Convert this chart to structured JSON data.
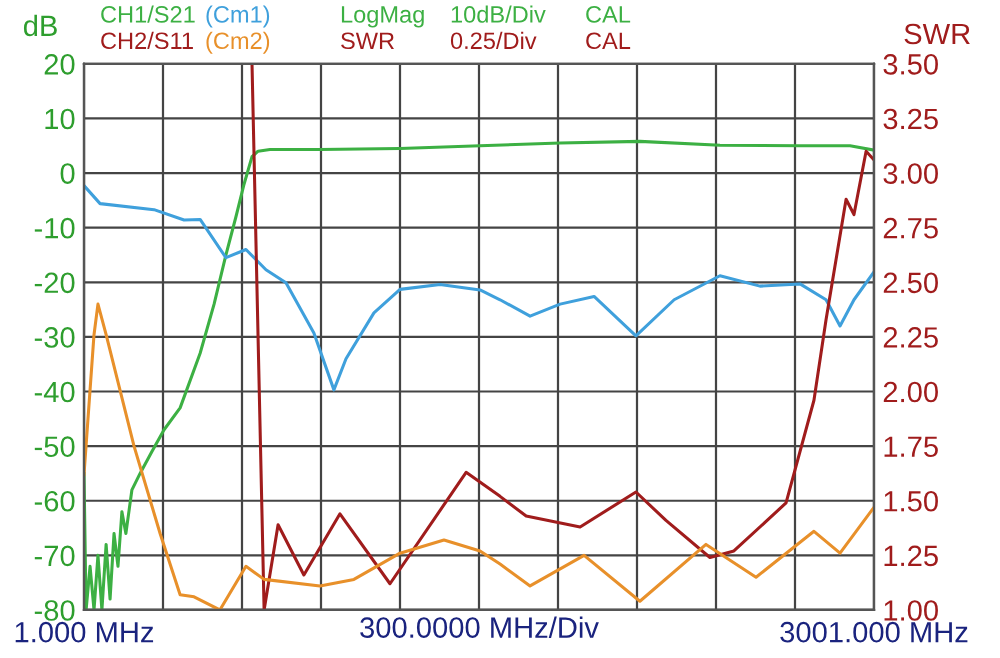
{
  "chart_data": {
    "type": "line",
    "annotations": [
      "LogMag",
      "10dB/Div",
      "CAL",
      "SWR",
      "0.25/Div",
      "CAL"
    ],
    "xlabel": "300.0000 MHz/Div",
    "ylabel": "dB",
    "y2label": "SWR",
    "xlim": [
      1,
      3001
    ],
    "xticks": [
      {
        "value": 1,
        "label": "1.000 MHz"
      },
      {
        "value": 301,
        "label": null
      },
      {
        "value": 601,
        "label": null
      },
      {
        "value": 901,
        "label": null
      },
      {
        "value": 1201,
        "label": null
      },
      {
        "value": 1501,
        "label": null
      },
      {
        "value": 1801,
        "label": null
      },
      {
        "value": 2101,
        "label": null
      },
      {
        "value": 2401,
        "label": null
      },
      {
        "value": 2701,
        "label": null
      },
      {
        "value": 3001,
        "label": "3001.000 MHz"
      }
    ],
    "ylim": [
      -80,
      20
    ],
    "yticks": [
      -80,
      -70,
      -60,
      -50,
      -40,
      -30,
      -20,
      -10,
      0,
      10,
      20
    ],
    "y2lim": [
      1,
      3.5
    ],
    "y2ticks": [
      {
        "value": 1,
        "label": "1.00"
      },
      {
        "value": 1.25,
        "label": "1.25"
      },
      {
        "value": 1.5,
        "label": "1.50"
      },
      {
        "value": 1.75,
        "label": "1.75"
      },
      {
        "value": 2,
        "label": "2.00"
      },
      {
        "value": 2.25,
        "label": "2.25"
      },
      {
        "value": 2.5,
        "label": "2.50"
      },
      {
        "value": 2.75,
        "label": "2.75"
      },
      {
        "value": 3,
        "label": "3.00"
      },
      {
        "value": 3.25,
        "label": "3.25"
      },
      {
        "value": 3.5,
        "label": "3.50"
      }
    ],
    "grid": true,
    "legend": "top",
    "marker": "none",
    "line_style": "solid",
    "series": [
      {
        "name": "CH1/S21",
        "color": "#3cb043",
        "x": [
          1,
          9,
          24,
          39,
          54,
          69,
          85,
          100,
          115,
          130,
          145,
          160,
          183,
          214,
          259,
          305,
          366,
          442,
          495,
          540,
          578,
          609,
          639,
          662,
          707,
          897,
          1201,
          1505,
          1809,
          2112,
          2416,
          2720,
          2910,
          3001
        ],
        "values": [
          -55,
          -80,
          -72,
          -80,
          -70,
          -80,
          -68,
          -78,
          -66,
          -72,
          -62,
          -66,
          -58,
          -55,
          -51,
          -47,
          -43,
          -33,
          -24,
          -15,
          -8,
          -2,
          3,
          4,
          4.3,
          4.3,
          4.5,
          5,
          5.5,
          5.8,
          5.1,
          5,
          5,
          4.2
        ]
      },
      {
        "name": "(Cm1)",
        "color": "#3fa0dc",
        "x": [
          1,
          62,
          267,
          381,
          442,
          540,
          616,
          692,
          768,
          874,
          950,
          996,
          1102,
          1201,
          1353,
          1505,
          1581,
          1695,
          1809,
          1938,
          2097,
          2242,
          2416,
          2568,
          2720,
          2819,
          2872,
          2925,
          3001
        ],
        "values": [
          -2.3,
          -5.6,
          -6.7,
          -8.6,
          -8.5,
          -15.5,
          -14,
          -17.7,
          -20.1,
          -29.3,
          -39.7,
          -34,
          -25.6,
          -21.3,
          -20.4,
          -21.4,
          -23.2,
          -26.2,
          -24,
          -22.6,
          -29.8,
          -23.2,
          -18.8,
          -20.7,
          -20.3,
          -23.2,
          -28,
          -23.2,
          -18.1
        ]
      },
      {
        "name": "CH2/S11",
        "color": "#a01c1c",
        "axis": "y2",
        "x": [
          639,
          685,
          738,
          836,
          973,
          1163,
          1452,
          1581,
          1680,
          1885,
          2097,
          2211,
          2378,
          2469,
          2667,
          2773,
          2819,
          2895,
          2925,
          2971,
          3001
        ],
        "values": [
          3.5,
          1.0,
          1.39,
          1.16,
          1.44,
          1.12,
          1.63,
          1.52,
          1.43,
          1.38,
          1.54,
          1.41,
          1.24,
          1.27,
          1.49,
          1.96,
          2.33,
          2.88,
          2.81,
          3.1,
          3.06
        ]
      },
      {
        "name": "(Cm2)",
        "color": "#e8902a",
        "axis": "y2",
        "x": [
          1,
          39,
          54,
          85,
          191,
          290,
          366,
          419,
          517,
          616,
          685,
          897,
          1026,
          1201,
          1368,
          1505,
          1581,
          1695,
          1900,
          2112,
          2363,
          2553,
          2773,
          2872,
          3001
        ],
        "values": [
          1.62,
          2.26,
          2.4,
          2.26,
          1.75,
          1.35,
          1.07,
          1.06,
          1.0,
          1.2,
          1.14,
          1.11,
          1.14,
          1.26,
          1.32,
          1.27,
          1.21,
          1.11,
          1.25,
          1.04,
          1.3,
          1.15,
          1.36,
          1.26,
          1.47
        ]
      }
    ]
  }
}
